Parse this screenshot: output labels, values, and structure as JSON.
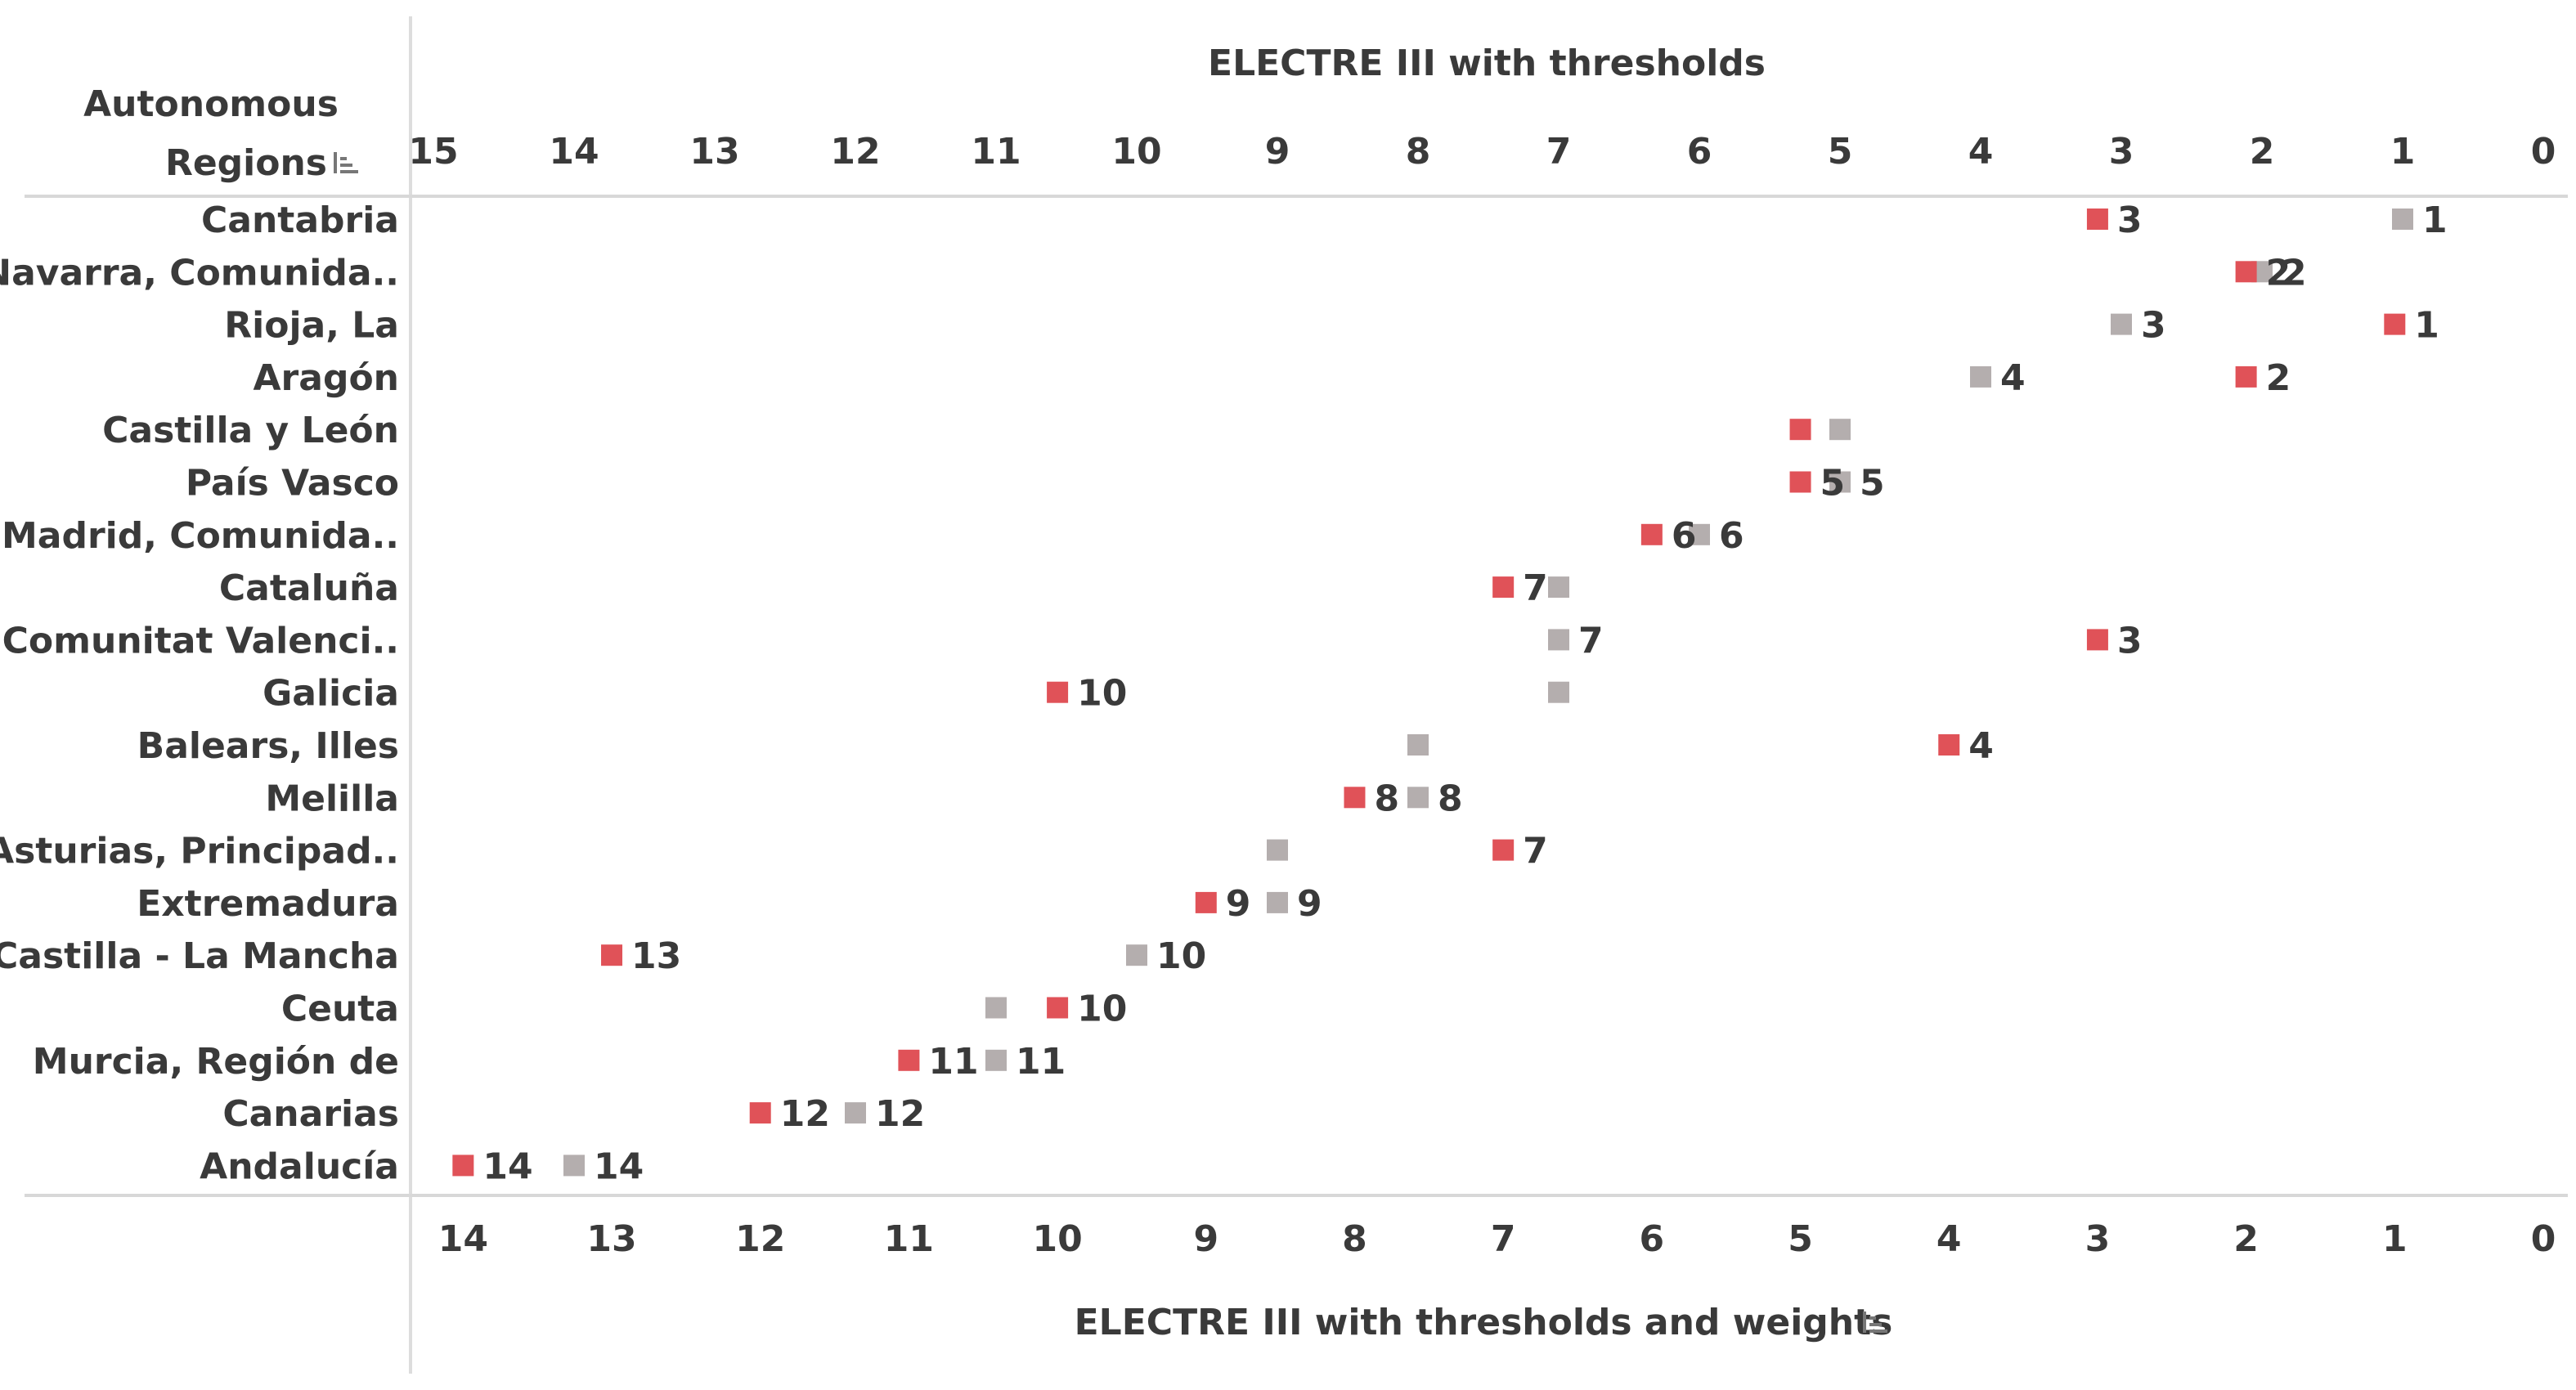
{
  "chart_data": {
    "type": "scatter",
    "row_header": [
      "Autonomous",
      "Regions"
    ],
    "sort_icon": "sort-descending-icon",
    "top_axis": {
      "title": "ELECTRE III with thresholds",
      "range": [
        15,
        0
      ],
      "ticks": [
        15,
        14,
        13,
        12,
        11,
        10,
        9,
        8,
        7,
        6,
        5,
        4,
        3,
        2,
        1,
        0
      ]
    },
    "bottom_axis": {
      "title": "ELECTRE III with thresholds and weights",
      "range": [
        14.2,
        0
      ],
      "ticks": [
        14,
        13,
        12,
        11,
        10,
        9,
        8,
        7,
        6,
        5,
        4,
        3,
        2,
        1,
        0
      ]
    },
    "colors": {
      "thresholds": "#b4aeae",
      "thresholds_and_weights": "#e05258"
    },
    "regions": [
      {
        "name": "Cantabria",
        "thresholds": 1,
        "thresholds_and_weights": 3,
        "labels": [
          "1",
          "3"
        ]
      },
      {
        "name": "Navarra, Comunida..",
        "thresholds": 2,
        "thresholds_and_weights": 2,
        "labels": [
          "2",
          "2"
        ]
      },
      {
        "name": "Rioja, La",
        "thresholds": 3,
        "thresholds_and_weights": 1,
        "labels": [
          "3",
          "1"
        ]
      },
      {
        "name": "Aragón",
        "thresholds": 4,
        "thresholds_and_weights": 2,
        "labels": [
          "4",
          "2"
        ]
      },
      {
        "name": "Castilla y León",
        "thresholds": 5,
        "thresholds_and_weights": 5,
        "labels": [
          "",
          ""
        ]
      },
      {
        "name": "País Vasco",
        "thresholds": 5,
        "thresholds_and_weights": 5,
        "labels": [
          "5",
          "5"
        ]
      },
      {
        "name": "Madrid, Comunida..",
        "thresholds": 6,
        "thresholds_and_weights": 6,
        "labels": [
          "6",
          "6"
        ]
      },
      {
        "name": "Cataluña",
        "thresholds": 7,
        "thresholds_and_weights": 7,
        "labels": [
          "",
          "7"
        ]
      },
      {
        "name": "Comunitat Valenci..",
        "thresholds": 7,
        "thresholds_and_weights": 3,
        "labels": [
          "7",
          "3"
        ]
      },
      {
        "name": "Galicia",
        "thresholds": 7,
        "thresholds_and_weights": 10,
        "labels": [
          "",
          "10"
        ]
      },
      {
        "name": "Balears, Illes",
        "thresholds": 8,
        "thresholds_and_weights": 4,
        "labels": [
          "",
          "4"
        ]
      },
      {
        "name": "Melilla",
        "thresholds": 8,
        "thresholds_and_weights": 8,
        "labels": [
          "8",
          "8"
        ]
      },
      {
        "name": "Asturias, Principad..",
        "thresholds": 9,
        "thresholds_and_weights": 7,
        "labels": [
          "",
          "7"
        ]
      },
      {
        "name": "Extremadura",
        "thresholds": 9,
        "thresholds_and_weights": 9,
        "labels": [
          "9",
          "9"
        ]
      },
      {
        "name": "Castilla - La Mancha",
        "thresholds": 10,
        "thresholds_and_weights": 13,
        "labels": [
          "10",
          "13"
        ]
      },
      {
        "name": "Ceuta",
        "thresholds": 11,
        "thresholds_and_weights": 10,
        "labels": [
          "",
          "10"
        ]
      },
      {
        "name": "Murcia, Región de",
        "thresholds": 11,
        "thresholds_and_weights": 11,
        "labels": [
          "11",
          "11"
        ]
      },
      {
        "name": "Canarias",
        "thresholds": 12,
        "thresholds_and_weights": 12,
        "labels": [
          "12",
          "12"
        ]
      },
      {
        "name": "Andalucía",
        "thresholds": 14,
        "thresholds_and_weights": 14,
        "labels": [
          "14",
          "14"
        ]
      }
    ]
  }
}
